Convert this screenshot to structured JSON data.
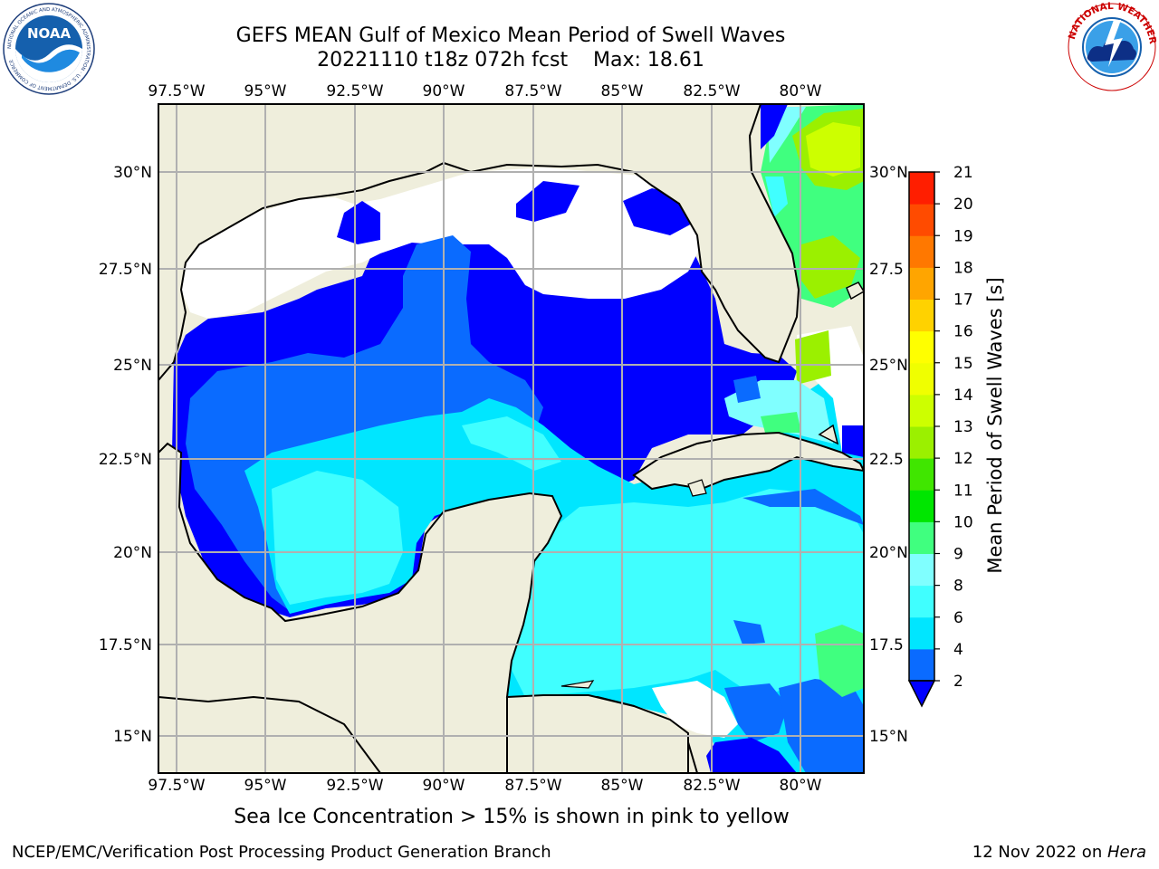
{
  "header": {
    "title_line1": "GEFS MEAN Gulf of Mexico Mean Period of Swell Waves",
    "title_line2": "20221110 t18z 072h fcst    Max: 18.61"
  },
  "logos": {
    "left": {
      "name": "noaa-logo",
      "text": "NOAA",
      "ring_text": "NATIONAL OCEANIC AND ATMOSPHERIC ADMINISTRATION · U.S. DEPARTMENT OF COMMERCE"
    },
    "right": {
      "name": "nws-logo",
      "ring_text": "NATIONAL WEATHER SERVICE"
    }
  },
  "map": {
    "lon_ticks": [
      "97.5°W",
      "95°W",
      "92.5°W",
      "90°W",
      "87.5°W",
      "85°W",
      "82.5°W",
      "80°W"
    ],
    "lat_ticks_left": [
      "30°N",
      "27.5°N",
      "25°N",
      "22.5°N",
      "20°N",
      "17.5°N",
      "15°N"
    ],
    "lat_ticks_right": [
      "30°N",
      "27.5",
      "25°N",
      "22.5",
      "20°N",
      "17.5",
      "15°N"
    ],
    "colors": {
      "land": "#efeedc",
      "no_data": "#ffffff",
      "grid": "#b0b0b0"
    }
  },
  "colorbar": {
    "title": "Mean Period of Swell Waves [s]",
    "levels": [
      "2",
      "4",
      "6",
      "8",
      "9",
      "10",
      "11",
      "12",
      "13",
      "14",
      "15",
      "16",
      "17",
      "18",
      "19",
      "20",
      "21"
    ],
    "colors": [
      "#0a6bff",
      "#00e6ff",
      "#40ffff",
      "#80ffff",
      "#40ff7f",
      "#00e600",
      "#40e600",
      "#9bf000",
      "#cdff00",
      "#f0ff00",
      "#ffff00",
      "#ffd200",
      "#ffa500",
      "#ff7800",
      "#ff4b00",
      "#ff1e00"
    ],
    "under_color": "#0000ff"
  },
  "note": "Sea Ice Concentration > 15% is shown in pink to yellow",
  "footer": {
    "left": "NCEP/EMC/Verification Post Processing Product Generation Branch",
    "right_date": "12 Nov 2022 on ",
    "right_host": "Hera"
  }
}
